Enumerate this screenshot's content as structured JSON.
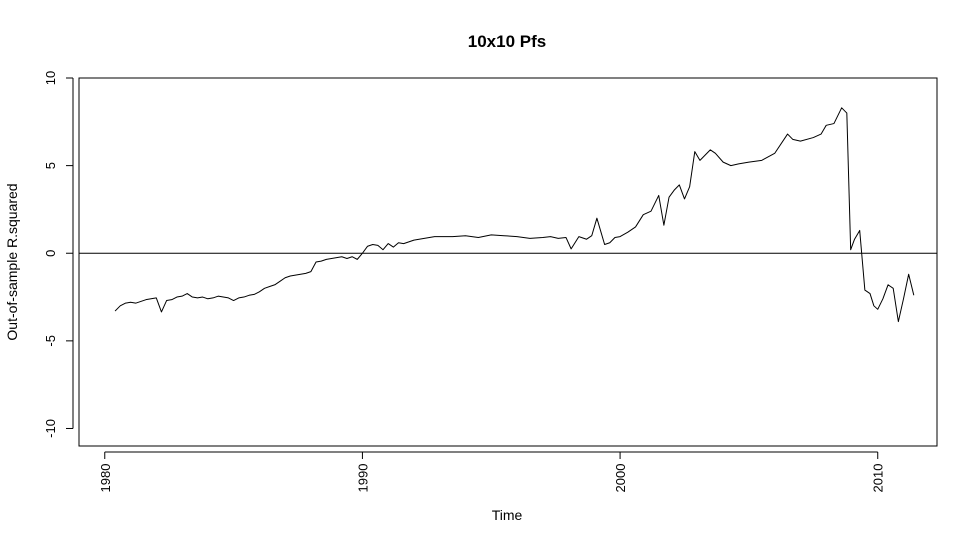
{
  "chart_data": {
    "type": "line",
    "title": "10x10 Pfs",
    "xlabel": "Time",
    "ylabel": "Out-of-sample R.squared",
    "xlim": [
      1979.0,
      2012.3
    ],
    "ylim": [
      -11,
      10
    ],
    "xticks": [
      1980,
      1990,
      2000,
      2010
    ],
    "xtick_labels": [
      "1980",
      "1990",
      "2000",
      "2010"
    ],
    "yticks": [
      -10,
      -5,
      0,
      5,
      10
    ],
    "ytick_labels": [
      "-10",
      "-5",
      "0",
      "5",
      "10"
    ],
    "hline": 0,
    "grid": false,
    "legend": "none",
    "line_color": "#000000",
    "series": [
      {
        "x": [
          1980.4,
          1980.6,
          1980.8,
          1981.0,
          1981.2,
          1981.4,
          1981.6,
          1981.8,
          1982.0,
          1982.2,
          1982.4,
          1982.6,
          1982.8,
          1983.0,
          1983.2,
          1983.4,
          1983.6,
          1983.8,
          1984.0,
          1984.2,
          1984.4,
          1984.6,
          1984.8,
          1985.0,
          1985.2,
          1985.4,
          1985.6,
          1985.8,
          1986.0,
          1986.2,
          1986.4,
          1986.6,
          1986.8,
          1987.0,
          1987.2,
          1987.4,
          1987.6,
          1987.8,
          1988.0,
          1988.2,
          1988.4,
          1988.6,
          1988.8,
          1989.0,
          1989.2,
          1989.4,
          1989.6,
          1989.8,
          1990.0,
          1990.2,
          1990.4,
          1990.6,
          1990.8,
          1991.0,
          1991.2,
          1991.4,
          1991.6,
          1991.8,
          1992.0,
          1992.2,
          1992.4,
          1992.6,
          1992.8,
          1993.0,
          1993.5,
          1994.0,
          1994.5,
          1995.0,
          1995.5,
          1996.0,
          1996.5,
          1997.0,
          1997.3,
          1997.6,
          1997.9,
          1998.1,
          1998.4,
          1998.7,
          1998.9,
          1999.1,
          1999.4,
          1999.6,
          1999.8,
          2000.0,
          2000.3,
          2000.6,
          2000.9,
          2001.2,
          2001.5,
          2001.7,
          2001.9,
          2002.1,
          2002.3,
          2002.5,
          2002.7,
          2002.9,
          2003.1,
          2003.3,
          2003.5,
          2003.7,
          2004.0,
          2004.3,
          2004.6,
          2005.0,
          2005.5,
          2006.0,
          2006.5,
          2006.7,
          2007.0,
          2007.5,
          2007.8,
          2008.0,
          2008.3,
          2008.6,
          2008.8,
          2008.95,
          2009.1,
          2009.3,
          2009.5,
          2009.7,
          2009.85,
          2010.0,
          2010.2,
          2010.4,
          2010.6,
          2010.8,
          2011.0,
          2011.2,
          2011.4
        ],
        "values": [
          -3.3,
          -3.0,
          -2.85,
          -2.8,
          -2.85,
          -2.75,
          -2.65,
          -2.6,
          -2.55,
          -3.35,
          -2.7,
          -2.65,
          -2.5,
          -2.45,
          -2.3,
          -2.5,
          -2.55,
          -2.5,
          -2.6,
          -2.55,
          -2.45,
          -2.5,
          -2.55,
          -2.7,
          -2.55,
          -2.5,
          -2.4,
          -2.35,
          -2.2,
          -2.0,
          -1.9,
          -1.8,
          -1.6,
          -1.4,
          -1.3,
          -1.25,
          -1.2,
          -1.15,
          -1.05,
          -0.5,
          -0.45,
          -0.35,
          -0.3,
          -0.25,
          -0.2,
          -0.3,
          -0.2,
          -0.35,
          0.0,
          0.4,
          0.5,
          0.45,
          0.2,
          0.55,
          0.35,
          0.6,
          0.55,
          0.65,
          0.75,
          0.8,
          0.85,
          0.9,
          0.95,
          0.95,
          0.95,
          1.0,
          0.9,
          1.05,
          1.0,
          0.95,
          0.85,
          0.9,
          0.95,
          0.85,
          0.9,
          0.25,
          0.95,
          0.8,
          1.0,
          2.0,
          0.5,
          0.6,
          0.9,
          0.95,
          1.2,
          1.5,
          2.2,
          2.4,
          3.3,
          1.6,
          3.2,
          3.6,
          3.9,
          3.1,
          3.8,
          5.8,
          5.3,
          5.6,
          5.9,
          5.7,
          5.2,
          5.0,
          5.1,
          5.2,
          5.3,
          5.7,
          6.8,
          6.5,
          6.4,
          6.6,
          6.8,
          7.3,
          7.4,
          8.3,
          8.0,
          0.2,
          0.8,
          1.3,
          -2.1,
          -2.3,
          -3.0,
          -3.2,
          -2.6,
          -1.8,
          -2.0,
          -3.9,
          -2.6,
          -1.2,
          -2.4
        ]
      }
    ]
  }
}
